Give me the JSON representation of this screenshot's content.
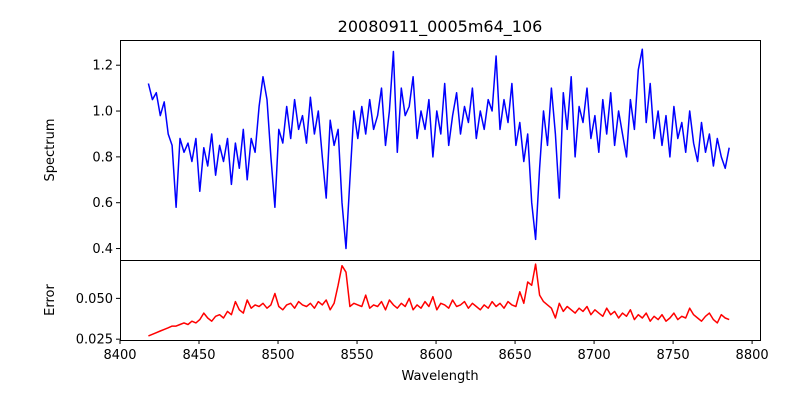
{
  "chart_data": [
    {
      "type": "line",
      "title": "20080911_0005m64_106",
      "xlabel": "",
      "ylabel": "Spectrum",
      "xlim": [
        8400,
        8805
      ],
      "ylim": [
        0.35,
        1.31
      ],
      "yticks": [
        "0.4",
        "0.6",
        "0.8",
        "1.0",
        "1.2"
      ],
      "grid": false,
      "series": [
        {
          "name": "Spectrum",
          "color": "#0000ff",
          "x_start": 8418,
          "x_step": 2.5,
          "values": [
            1.12,
            1.05,
            1.08,
            0.98,
            1.04,
            0.9,
            0.85,
            0.58,
            0.88,
            0.82,
            0.86,
            0.78,
            0.88,
            0.65,
            0.84,
            0.76,
            0.9,
            0.72,
            0.85,
            0.78,
            0.88,
            0.68,
            0.86,
            0.75,
            0.92,
            0.7,
            0.88,
            0.82,
            1.02,
            1.15,
            1.05,
            0.8,
            0.58,
            0.92,
            0.86,
            1.02,
            0.88,
            1.05,
            0.92,
            0.98,
            0.86,
            1.06,
            0.9,
            1.0,
            0.8,
            0.62,
            0.96,
            0.85,
            0.92,
            0.6,
            0.4,
            0.7,
            1.0,
            0.88,
            1.02,
            0.9,
            1.05,
            0.92,
            0.98,
            1.1,
            0.85,
            1.0,
            1.26,
            0.82,
            1.1,
            0.98,
            1.02,
            1.15,
            0.88,
            1.0,
            0.92,
            1.05,
            0.8,
            1.0,
            0.9,
            1.12,
            0.85,
            0.98,
            1.08,
            0.9,
            1.02,
            0.95,
            1.1,
            0.88,
            1.0,
            0.92,
            1.05,
            1.0,
            1.24,
            0.92,
            1.05,
            0.95,
            1.12,
            0.85,
            0.95,
            0.78,
            0.9,
            0.6,
            0.44,
            0.75,
            1.0,
            0.85,
            1.1,
            0.9,
            0.62,
            1.08,
            0.92,
            1.15,
            0.8,
            1.02,
            0.95,
            1.1,
            0.88,
            0.98,
            0.82,
            1.05,
            0.9,
            1.08,
            0.85,
            1.0,
            0.9,
            0.8,
            1.05,
            0.92,
            1.18,
            1.27,
            0.95,
            1.12,
            0.88,
            1.0,
            0.85,
            0.98,
            0.8,
            1.02,
            0.88,
            0.95,
            0.82,
            1.0,
            0.86,
            0.78,
            0.95,
            0.82,
            0.9,
            0.76,
            0.88,
            0.8,
            0.75,
            0.84
          ]
        }
      ]
    },
    {
      "type": "line",
      "xlabel": "Wavelength",
      "ylabel": "Error",
      "xlim": [
        8400,
        8805
      ],
      "ylim": [
        0.0245,
        0.0735
      ],
      "xticks": [
        "8400",
        "8450",
        "8500",
        "8550",
        "8600",
        "8650",
        "8700",
        "8750",
        "8800"
      ],
      "yticks": [
        "0.025",
        "0.050"
      ],
      "grid": false,
      "series": [
        {
          "name": "Error",
          "color": "#ff0000",
          "x_start": 8418,
          "x_step": 2.5,
          "values": [
            0.027,
            0.028,
            0.029,
            0.03,
            0.031,
            0.032,
            0.033,
            0.033,
            0.034,
            0.035,
            0.034,
            0.036,
            0.035,
            0.037,
            0.041,
            0.038,
            0.036,
            0.039,
            0.04,
            0.038,
            0.042,
            0.04,
            0.048,
            0.043,
            0.041,
            0.049,
            0.044,
            0.046,
            0.045,
            0.047,
            0.044,
            0.046,
            0.053,
            0.045,
            0.043,
            0.046,
            0.047,
            0.044,
            0.048,
            0.046,
            0.045,
            0.047,
            0.044,
            0.048,
            0.046,
            0.049,
            0.043,
            0.047,
            0.058,
            0.07,
            0.066,
            0.045,
            0.047,
            0.046,
            0.045,
            0.052,
            0.044,
            0.046,
            0.045,
            0.048,
            0.043,
            0.049,
            0.046,
            0.044,
            0.047,
            0.045,
            0.05,
            0.043,
            0.046,
            0.044,
            0.048,
            0.045,
            0.051,
            0.043,
            0.047,
            0.046,
            0.044,
            0.049,
            0.045,
            0.046,
            0.048,
            0.044,
            0.047,
            0.045,
            0.043,
            0.046,
            0.044,
            0.048,
            0.045,
            0.047,
            0.044,
            0.048,
            0.046,
            0.045,
            0.054,
            0.047,
            0.06,
            0.058,
            0.071,
            0.052,
            0.048,
            0.046,
            0.044,
            0.038,
            0.047,
            0.042,
            0.045,
            0.043,
            0.041,
            0.044,
            0.042,
            0.045,
            0.04,
            0.043,
            0.041,
            0.039,
            0.044,
            0.04,
            0.042,
            0.038,
            0.041,
            0.039,
            0.043,
            0.037,
            0.04,
            0.038,
            0.041,
            0.036,
            0.039,
            0.037,
            0.04,
            0.036,
            0.038,
            0.041,
            0.037,
            0.039,
            0.038,
            0.044,
            0.04,
            0.038,
            0.036,
            0.039,
            0.041,
            0.037,
            0.035,
            0.04,
            0.038,
            0.037
          ]
        }
      ]
    }
  ]
}
